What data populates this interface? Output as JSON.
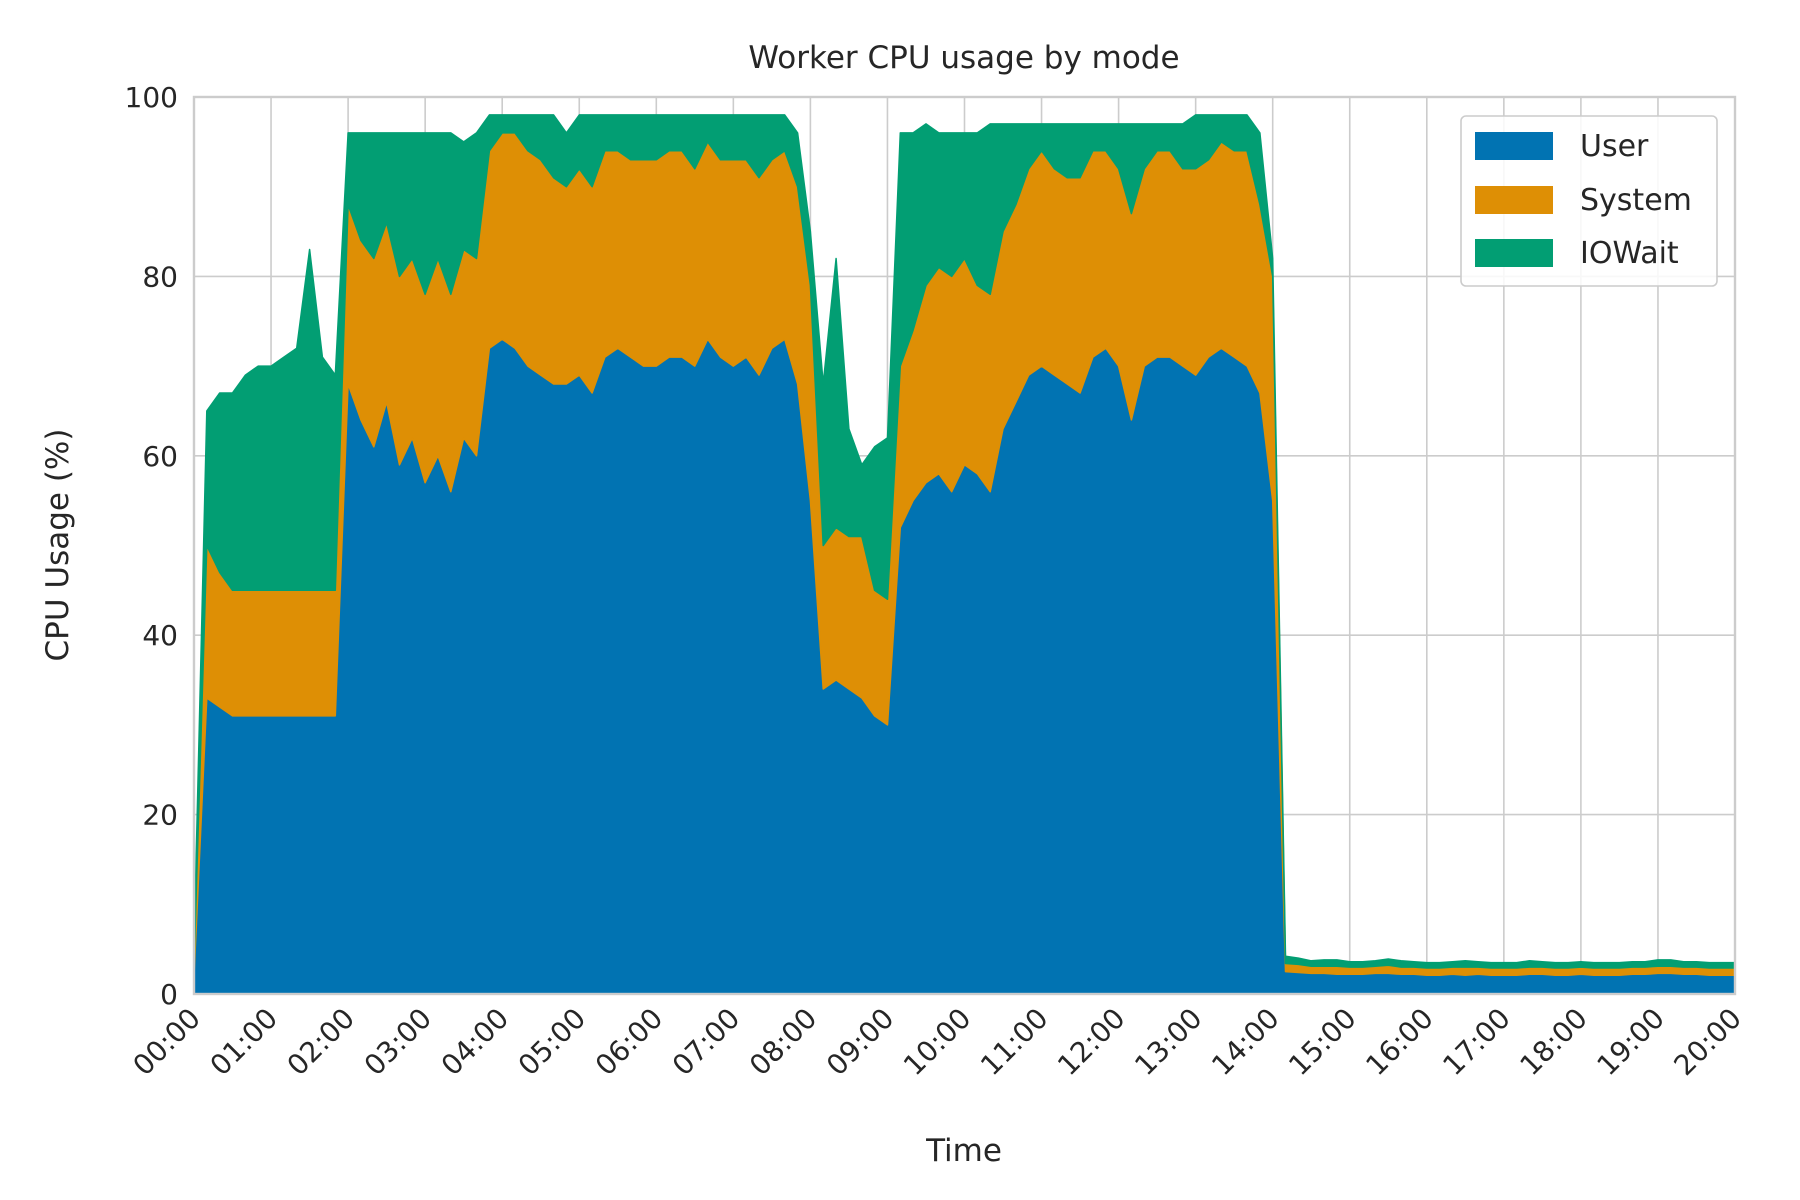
{
  "chart_data": {
    "type": "area",
    "stacked": true,
    "title": "Worker CPU usage by mode",
    "xlabel": "Time",
    "ylabel": "CPU Usage (%)",
    "xlim": [
      "00:00",
      "20:00"
    ],
    "ylim": [
      0,
      100
    ],
    "yticks": [
      "0",
      "20",
      "40",
      "60",
      "80",
      "100"
    ],
    "xticks": [
      "00:00",
      "01:00",
      "02:00",
      "03:00",
      "04:00",
      "05:00",
      "06:00",
      "07:00",
      "08:00",
      "09:00",
      "10:00",
      "11:00",
      "12:00",
      "13:00",
      "14:00",
      "15:00",
      "16:00",
      "17:00",
      "18:00",
      "19:00",
      "20:00"
    ],
    "grid": true,
    "legend_position": "top-right",
    "x": [
      "00:00",
      "00:10",
      "00:20",
      "00:30",
      "00:40",
      "00:50",
      "01:00",
      "01:10",
      "01:20",
      "01:30",
      "01:40",
      "01:50",
      "02:00",
      "02:10",
      "02:20",
      "02:30",
      "02:40",
      "02:50",
      "03:00",
      "03:10",
      "03:20",
      "03:30",
      "03:40",
      "03:50",
      "04:00",
      "04:10",
      "04:20",
      "04:30",
      "04:40",
      "04:50",
      "05:00",
      "05:10",
      "05:20",
      "05:30",
      "05:40",
      "05:50",
      "06:00",
      "06:10",
      "06:20",
      "06:30",
      "06:40",
      "06:50",
      "07:00",
      "07:10",
      "07:20",
      "07:30",
      "07:40",
      "07:50",
      "08:00",
      "08:10",
      "08:20",
      "08:30",
      "08:40",
      "08:50",
      "09:00",
      "09:10",
      "09:20",
      "09:30",
      "09:40",
      "09:50",
      "10:00",
      "10:10",
      "10:20",
      "10:30",
      "10:40",
      "10:50",
      "11:00",
      "11:10",
      "11:20",
      "11:30",
      "11:40",
      "11:50",
      "12:00",
      "12:10",
      "12:20",
      "12:30",
      "12:40",
      "12:50",
      "13:00",
      "13:10",
      "13:20",
      "13:30",
      "13:40",
      "13:50",
      "14:00",
      "14:10",
      "14:20",
      "14:30",
      "14:40",
      "14:50",
      "15:00",
      "15:10",
      "15:20",
      "15:30",
      "15:40",
      "15:50",
      "16:00",
      "16:10",
      "16:20",
      "16:30",
      "16:40",
      "16:50",
      "17:00",
      "17:10",
      "17:20",
      "17:30",
      "17:40",
      "17:50",
      "18:00",
      "18:10",
      "18:20",
      "18:30",
      "18:40",
      "18:50",
      "19:00",
      "19:10",
      "19:20",
      "19:30",
      "19:40",
      "19:50",
      "20:00"
    ],
    "series": [
      {
        "name": "User",
        "color": "#0173b2",
        "values": [
          2,
          33,
          32,
          31,
          31,
          31,
          31,
          31,
          31,
          31,
          31,
          31,
          68,
          64,
          61,
          66,
          59,
          62,
          57,
          60,
          56,
          62,
          60,
          72,
          73,
          72,
          70,
          69,
          68,
          68,
          69,
          67,
          71,
          72,
          71,
          70,
          70,
          71,
          71,
          70,
          73,
          71,
          70,
          71,
          69,
          72,
          73,
          68,
          55,
          34,
          35,
          34,
          33,
          31,
          30,
          52,
          55,
          57,
          58,
          56,
          59,
          58,
          56,
          63,
          66,
          69,
          70,
          69,
          68,
          67,
          71,
          72,
          70,
          64,
          70,
          71,
          71,
          70,
          69,
          71,
          72,
          71,
          70,
          67,
          55,
          2.5,
          2.4,
          2.3,
          2.3,
          2.2,
          2.2,
          2.2,
          2.3,
          2.3,
          2.2,
          2.2,
          2.1,
          2.1,
          2.2,
          2.1,
          2.2,
          2.1,
          2.1,
          2.1,
          2.2,
          2.2,
          2.1,
          2.1,
          2.2,
          2.1,
          2.1,
          2.1,
          2.2,
          2.2,
          2.3,
          2.3,
          2.2,
          2.2,
          2.1,
          2.1,
          2.1
        ]
      },
      {
        "name": "System",
        "color": "#de8f05",
        "values": [
          1,
          17,
          15,
          14,
          14,
          14,
          14,
          14,
          14,
          14,
          14,
          14,
          20,
          20,
          21,
          20,
          21,
          20,
          21,
          22,
          22,
          21,
          22,
          22,
          23,
          24,
          24,
          24,
          23,
          22,
          23,
          23,
          23,
          22,
          22,
          23,
          23,
          23,
          23,
          22,
          22,
          22,
          23,
          22,
          22,
          21,
          21,
          22,
          24,
          16,
          17,
          17,
          18,
          14,
          14,
          18,
          19,
          22,
          23,
          24,
          23,
          21,
          22,
          22,
          22,
          23,
          24,
          23,
          23,
          24,
          23,
          22,
          22,
          23,
          22,
          23,
          23,
          22,
          23,
          22,
          23,
          23,
          24,
          21,
          25,
          0.9,
          0.9,
          0.8,
          0.8,
          0.9,
          0.8,
          0.8,
          0.8,
          0.9,
          0.8,
          0.8,
          0.8,
          0.8,
          0.8,
          0.9,
          0.8,
          0.8,
          0.8,
          0.8,
          0.8,
          0.8,
          0.8,
          0.8,
          0.8,
          0.8,
          0.8,
          0.8,
          0.8,
          0.8,
          0.8,
          0.8,
          0.8,
          0.8,
          0.8,
          0.8,
          0.8
        ]
      },
      {
        "name": "IOWait",
        "color": "#029e73",
        "values": [
          2,
          15,
          20,
          22,
          24,
          25,
          25,
          26,
          27,
          38,
          26,
          24,
          8,
          12,
          14,
          10,
          16,
          14,
          18,
          14,
          18,
          12,
          14,
          4,
          2,
          2,
          4,
          5,
          7,
          6,
          6,
          8,
          4,
          4,
          5,
          5,
          5,
          4,
          4,
          6,
          3,
          5,
          5,
          5,
          7,
          5,
          4,
          6,
          6,
          18,
          30,
          12,
          8,
          16,
          18,
          26,
          22,
          18,
          15,
          16,
          14,
          17,
          19,
          12,
          9,
          5,
          3,
          5,
          6,
          6,
          3,
          3,
          5,
          10,
          5,
          3,
          3,
          5,
          6,
          5,
          3,
          4,
          4,
          8,
          2,
          0.8,
          0.7,
          0.6,
          0.7,
          0.7,
          0.6,
          0.6,
          0.6,
          0.7,
          0.7,
          0.6,
          0.6,
          0.6,
          0.6,
          0.7,
          0.6,
          0.6,
          0.6,
          0.6,
          0.7,
          0.6,
          0.6,
          0.6,
          0.6,
          0.6,
          0.6,
          0.6,
          0.6,
          0.6,
          0.7,
          0.7,
          0.6,
          0.6,
          0.6,
          0.6,
          0.6
        ]
      }
    ]
  }
}
